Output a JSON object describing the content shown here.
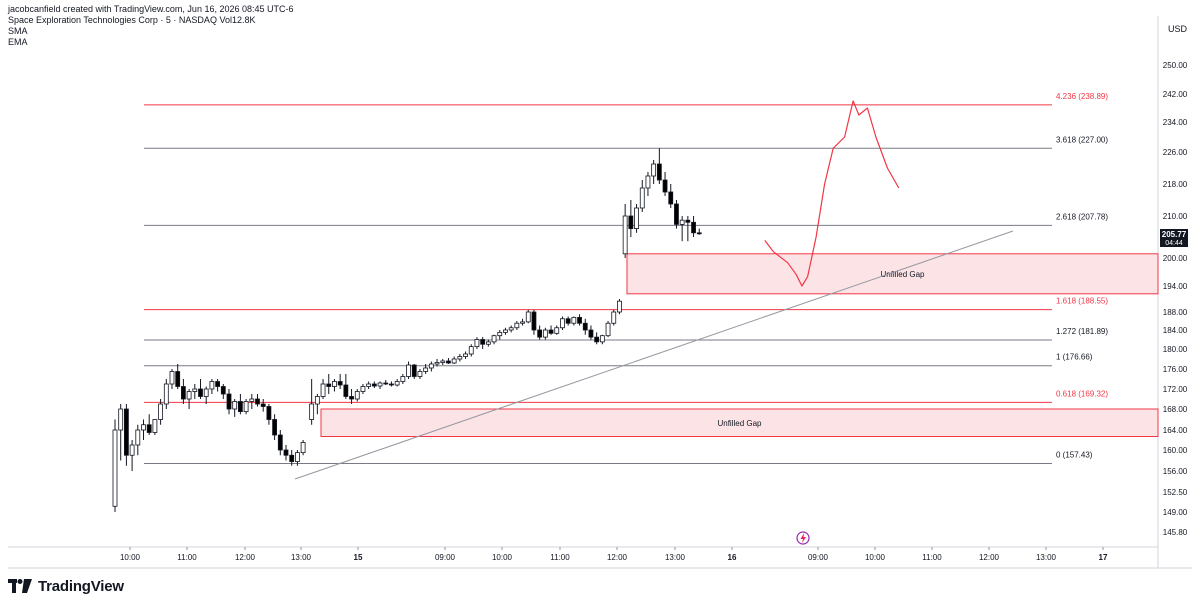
{
  "header": {
    "credit": "jacobcanfield created with TradingView.com, Jun 16, 2026 08:45 UTC-6",
    "symbol_line_prefix": "Space Exploration Technologies Corp · 5 · NASDAQ",
    "vol_label": "Vol",
    "vol_value": "12.8K",
    "indicators": [
      "SMA",
      "EMA"
    ]
  },
  "brand": {
    "name": "TradingView"
  },
  "price_axis": {
    "currency": "USD",
    "ticks": [
      "250.00",
      "242.00",
      "234.00",
      "226.00",
      "218.00",
      "210.00",
      "200.00",
      "194.00",
      "188.00",
      "184.00",
      "180.00",
      "176.00",
      "172.00",
      "168.00",
      "164.00",
      "160.00",
      "156.00",
      "152.50",
      "149.00",
      "145.80"
    ],
    "current_price": "205.77",
    "countdown": "04:44"
  },
  "time_axis": {
    "ticks": [
      "10:00",
      "11:00",
      "12:00",
      "13:00",
      "15",
      "09:00",
      "10:00",
      "11:00",
      "12:00",
      "13:00",
      "16",
      "09:00",
      "10:00",
      "11:00",
      "12:00",
      "13:00",
      "17"
    ]
  },
  "colors": {
    "fib_red": "#f23645",
    "fib_gray": "#787b86",
    "gap_fill": "#fce4e6",
    "gap_border": "#f23645",
    "up_candle": "#ffffff",
    "down_candle": "#000000",
    "projection": "#f23645",
    "trendline": "#9598a1"
  },
  "chart_data": {
    "type": "candlestick",
    "title": "Space Exploration Technologies Corp · 5 · NASDAQ",
    "ylim": [
      144,
      254
    ],
    "y_scale": "linear",
    "grid": false,
    "fib_levels": [
      {
        "label": "4.236 (238.89)",
        "value": 238.89,
        "color": "red"
      },
      {
        "label": "3.618 (227.00)",
        "value": 227.0,
        "color": "gray"
      },
      {
        "label": "2.618 (207.78)",
        "value": 207.78,
        "color": "gray"
      },
      {
        "label": "1.618 (188.55)",
        "value": 188.55,
        "color": "red"
      },
      {
        "label": "1.272 (181.89)",
        "value": 181.89,
        "color": "gray"
      },
      {
        "label": "1 (176.66)",
        "value": 176.66,
        "color": "gray"
      },
      {
        "label": "0.618 (169.32)",
        "value": 169.32,
        "color": "red"
      },
      {
        "label": "0 (157.43)",
        "value": 157.43,
        "color": "gray"
      }
    ],
    "gaps": [
      {
        "label": "Unfilled Gap",
        "top": 201.0,
        "bottom": 192.2
      },
      {
        "label": "Unfilled Gap",
        "top": 168.0,
        "bottom": 162.7
      }
    ],
    "trendline": [
      {
        "x": 4.0,
        "y": 155.0
      },
      {
        "x": 16.2,
        "y": 204.0
      }
    ],
    "projection": [
      [
        11.4,
        204.2
      ],
      [
        11.55,
        201.5
      ],
      [
        11.8,
        199.0
      ],
      [
        11.95,
        196.5
      ],
      [
        12.05,
        194.0
      ],
      [
        12.15,
        196.0
      ],
      [
        12.3,
        205.0
      ],
      [
        12.45,
        218.0
      ],
      [
        12.6,
        227.0
      ],
      [
        12.8,
        230.0
      ],
      [
        12.95,
        240.0
      ],
      [
        13.05,
        236.0
      ],
      [
        13.2,
        238.0
      ],
      [
        13.35,
        230.0
      ],
      [
        13.55,
        222.0
      ],
      [
        13.75,
        217.0
      ]
    ],
    "candles": [
      {
        "x": 0.0,
        "o": 150,
        "h": 166,
        "l": 149,
        "c": 164
      },
      {
        "x": 0.1,
        "o": 164,
        "h": 169,
        "l": 158,
        "c": 168
      },
      {
        "x": 0.2,
        "o": 168,
        "h": 169,
        "l": 157,
        "c": 159
      },
      {
        "x": 0.3,
        "o": 159,
        "h": 162,
        "l": 156,
        "c": 161
      },
      {
        "x": 0.4,
        "o": 161,
        "h": 165,
        "l": 159,
        "c": 164
      },
      {
        "x": 0.5,
        "o": 164,
        "h": 166,
        "l": 162,
        "c": 165
      },
      {
        "x": 0.6,
        "o": 165,
        "h": 167,
        "l": 163,
        "c": 163.5
      },
      {
        "x": 0.7,
        "o": 163.5,
        "h": 166,
        "l": 163,
        "c": 166
      },
      {
        "x": 0.8,
        "o": 166,
        "h": 170,
        "l": 165,
        "c": 169
      },
      {
        "x": 0.9,
        "o": 169,
        "h": 174,
        "l": 168,
        "c": 173
      },
      {
        "x": 1.0,
        "o": 173,
        "h": 176,
        "l": 172,
        "c": 175.5
      },
      {
        "x": 1.1,
        "o": 175.5,
        "h": 177,
        "l": 172,
        "c": 172.5
      },
      {
        "x": 1.2,
        "o": 172.5,
        "h": 174,
        "l": 169,
        "c": 170
      },
      {
        "x": 1.3,
        "o": 170,
        "h": 172,
        "l": 168,
        "c": 171.5
      },
      {
        "x": 1.4,
        "o": 171.5,
        "h": 173,
        "l": 170,
        "c": 172
      },
      {
        "x": 1.5,
        "o": 172,
        "h": 174,
        "l": 170,
        "c": 170.5
      },
      {
        "x": 1.6,
        "o": 170.5,
        "h": 172.5,
        "l": 169,
        "c": 172
      },
      {
        "x": 1.7,
        "o": 172,
        "h": 174,
        "l": 171,
        "c": 173.5
      },
      {
        "x": 1.8,
        "o": 173.5,
        "h": 174,
        "l": 171.5,
        "c": 172.5
      },
      {
        "x": 1.9,
        "o": 172.5,
        "h": 173,
        "l": 170,
        "c": 171
      },
      {
        "x": 2.0,
        "o": 171,
        "h": 172,
        "l": 167,
        "c": 168
      },
      {
        "x": 2.1,
        "o": 168,
        "h": 170,
        "l": 166.5,
        "c": 169.5
      },
      {
        "x": 2.2,
        "o": 169.5,
        "h": 171,
        "l": 167,
        "c": 167.5
      },
      {
        "x": 2.3,
        "o": 167.5,
        "h": 170,
        "l": 167,
        "c": 169.5
      },
      {
        "x": 2.4,
        "o": 169.5,
        "h": 171,
        "l": 168,
        "c": 170
      },
      {
        "x": 2.5,
        "o": 170,
        "h": 171,
        "l": 168.5,
        "c": 169
      },
      {
        "x": 2.6,
        "o": 169,
        "h": 170,
        "l": 167.5,
        "c": 168.5
      },
      {
        "x": 2.7,
        "o": 168.5,
        "h": 169,
        "l": 165,
        "c": 166
      },
      {
        "x": 2.8,
        "o": 166,
        "h": 167,
        "l": 162,
        "c": 163
      },
      {
        "x": 2.9,
        "o": 163,
        "h": 164,
        "l": 159,
        "c": 160
      },
      {
        "x": 3.0,
        "o": 160,
        "h": 161,
        "l": 158,
        "c": 159
      },
      {
        "x": 3.1,
        "o": 159,
        "h": 160,
        "l": 157,
        "c": 157.8
      },
      {
        "x": 3.2,
        "o": 157.8,
        "h": 160,
        "l": 157,
        "c": 159.5
      },
      {
        "x": 3.3,
        "o": 159.5,
        "h": 162,
        "l": 159,
        "c": 161.5
      },
      {
        "x": 3.45,
        "o": 166,
        "h": 174,
        "l": 165,
        "c": 169
      },
      {
        "x": 3.55,
        "o": 169,
        "h": 171,
        "l": 167,
        "c": 170.5
      },
      {
        "x": 3.65,
        "o": 170.5,
        "h": 174,
        "l": 170,
        "c": 173
      },
      {
        "x": 3.75,
        "o": 173,
        "h": 175,
        "l": 171,
        "c": 172.5
      },
      {
        "x": 3.85,
        "o": 172.5,
        "h": 174,
        "l": 171.5,
        "c": 173.5
      },
      {
        "x": 3.95,
        "o": 173.5,
        "h": 175,
        "l": 172,
        "c": 172.8
      },
      {
        "x": 4.05,
        "o": 172.8,
        "h": 175,
        "l": 170,
        "c": 170.5
      },
      {
        "x": 4.15,
        "o": 170.5,
        "h": 172,
        "l": 169,
        "c": 170
      },
      {
        "x": 4.25,
        "o": 170,
        "h": 172,
        "l": 169.5,
        "c": 171.5
      },
      {
        "x": 4.35,
        "o": 171.5,
        "h": 173,
        "l": 171,
        "c": 172.5
      },
      {
        "x": 4.45,
        "o": 172.5,
        "h": 173.5,
        "l": 172,
        "c": 173
      },
      {
        "x": 4.55,
        "o": 173,
        "h": 173.5,
        "l": 172.2,
        "c": 172.6
      },
      {
        "x": 4.65,
        "o": 172.6,
        "h": 173.5,
        "l": 172,
        "c": 173.2
      },
      {
        "x": 4.75,
        "o": 173.2,
        "h": 173.8,
        "l": 172.8,
        "c": 173
      },
      {
        "x": 4.85,
        "o": 173,
        "h": 173.5,
        "l": 172.5,
        "c": 172.8
      },
      {
        "x": 4.95,
        "o": 172.8,
        "h": 174,
        "l": 172.5,
        "c": 173.5
      },
      {
        "x": 5.05,
        "o": 173.5,
        "h": 175,
        "l": 173,
        "c": 174.5
      },
      {
        "x": 5.15,
        "o": 174.5,
        "h": 177.5,
        "l": 174,
        "c": 176.8
      },
      {
        "x": 5.25,
        "o": 176.8,
        "h": 177,
        "l": 174,
        "c": 174.5
      },
      {
        "x": 5.35,
        "o": 174.5,
        "h": 176,
        "l": 174,
        "c": 175.5
      },
      {
        "x": 5.45,
        "o": 175.5,
        "h": 177,
        "l": 175,
        "c": 176.2
      },
      {
        "x": 5.55,
        "o": 176.2,
        "h": 177.5,
        "l": 175.5,
        "c": 177
      },
      {
        "x": 5.65,
        "o": 177,
        "h": 178,
        "l": 176.5,
        "c": 177.3
      },
      {
        "x": 5.75,
        "o": 177.3,
        "h": 178,
        "l": 176.8,
        "c": 177.6
      },
      {
        "x": 5.85,
        "o": 177.6,
        "h": 178.2,
        "l": 177,
        "c": 177.2
      },
      {
        "x": 5.95,
        "o": 177.2,
        "h": 178.5,
        "l": 177,
        "c": 178
      },
      {
        "x": 6.05,
        "o": 178,
        "h": 179,
        "l": 177.5,
        "c": 178.5
      },
      {
        "x": 6.15,
        "o": 178.5,
        "h": 179.5,
        "l": 178,
        "c": 179
      },
      {
        "x": 6.25,
        "o": 179,
        "h": 181,
        "l": 178.5,
        "c": 180.5
      },
      {
        "x": 6.35,
        "o": 180.5,
        "h": 182.5,
        "l": 180,
        "c": 182
      },
      {
        "x": 6.45,
        "o": 182,
        "h": 182.5,
        "l": 180,
        "c": 181
      },
      {
        "x": 6.55,
        "o": 181,
        "h": 182,
        "l": 180.5,
        "c": 181.5
      },
      {
        "x": 6.65,
        "o": 181.5,
        "h": 183,
        "l": 181,
        "c": 182.8
      },
      {
        "x": 6.75,
        "o": 182.8,
        "h": 184,
        "l": 182,
        "c": 183.5
      },
      {
        "x": 6.85,
        "o": 183.5,
        "h": 184.5,
        "l": 183,
        "c": 184
      },
      {
        "x": 6.95,
        "o": 184,
        "h": 185,
        "l": 183.5,
        "c": 184.5
      },
      {
        "x": 7.05,
        "o": 184.5,
        "h": 186,
        "l": 184,
        "c": 185.5
      },
      {
        "x": 7.15,
        "o": 185.5,
        "h": 186.5,
        "l": 185,
        "c": 185.8
      },
      {
        "x": 7.25,
        "o": 185.8,
        "h": 188.5,
        "l": 185.5,
        "c": 188
      },
      {
        "x": 7.35,
        "o": 188,
        "h": 188.5,
        "l": 183,
        "c": 184
      },
      {
        "x": 7.45,
        "o": 184,
        "h": 185,
        "l": 182,
        "c": 182.5
      },
      {
        "x": 7.55,
        "o": 182.5,
        "h": 184.5,
        "l": 182,
        "c": 184
      },
      {
        "x": 7.65,
        "o": 184,
        "h": 185,
        "l": 183,
        "c": 183.3
      },
      {
        "x": 7.75,
        "o": 183.3,
        "h": 185,
        "l": 183,
        "c": 184.5
      },
      {
        "x": 7.85,
        "o": 184.5,
        "h": 187,
        "l": 184,
        "c": 186.5
      },
      {
        "x": 7.95,
        "o": 186.5,
        "h": 187,
        "l": 185,
        "c": 185.5
      },
      {
        "x": 8.05,
        "o": 185.5,
        "h": 187,
        "l": 185,
        "c": 186.8
      },
      {
        "x": 8.15,
        "o": 186.8,
        "h": 187.5,
        "l": 185,
        "c": 185.5
      },
      {
        "x": 8.25,
        "o": 185.5,
        "h": 186.5,
        "l": 183,
        "c": 184
      },
      {
        "x": 8.35,
        "o": 184,
        "h": 185,
        "l": 182,
        "c": 182.5
      },
      {
        "x": 8.45,
        "o": 182.5,
        "h": 183.5,
        "l": 181,
        "c": 181.5
      },
      {
        "x": 8.55,
        "o": 181.5,
        "h": 183,
        "l": 181,
        "c": 182.8
      },
      {
        "x": 8.65,
        "o": 182.8,
        "h": 186,
        "l": 182.5,
        "c": 185.5
      },
      {
        "x": 8.75,
        "o": 185.5,
        "h": 188.5,
        "l": 185,
        "c": 188
      },
      {
        "x": 8.85,
        "o": 188,
        "h": 191,
        "l": 187.5,
        "c": 190.5
      },
      {
        "x": 8.95,
        "o": 201,
        "h": 213,
        "l": 200,
        "c": 210
      },
      {
        "x": 9.05,
        "o": 210,
        "h": 214,
        "l": 205,
        "c": 207
      },
      {
        "x": 9.15,
        "o": 207,
        "h": 213,
        "l": 206,
        "c": 212
      },
      {
        "x": 9.25,
        "o": 212,
        "h": 219,
        "l": 211,
        "c": 217
      },
      {
        "x": 9.35,
        "o": 217,
        "h": 221,
        "l": 215,
        "c": 220
      },
      {
        "x": 9.45,
        "o": 220,
        "h": 224,
        "l": 218,
        "c": 223
      },
      {
        "x": 9.55,
        "o": 223,
        "h": 227,
        "l": 218,
        "c": 219
      },
      {
        "x": 9.65,
        "o": 219,
        "h": 221,
        "l": 215,
        "c": 216
      },
      {
        "x": 9.75,
        "o": 216,
        "h": 218,
        "l": 212,
        "c": 213
      },
      {
        "x": 9.85,
        "o": 213,
        "h": 214,
        "l": 207,
        "c": 208
      },
      {
        "x": 9.95,
        "o": 208,
        "h": 210,
        "l": 204,
        "c": 209
      },
      {
        "x": 10.05,
        "o": 209,
        "h": 210,
        "l": 204,
        "c": 208.5
      },
      {
        "x": 10.15,
        "o": 208.5,
        "h": 210,
        "l": 205,
        "c": 206
      },
      {
        "x": 10.25,
        "o": 206,
        "h": 207,
        "l": 205.5,
        "c": 205.77
      }
    ]
  }
}
